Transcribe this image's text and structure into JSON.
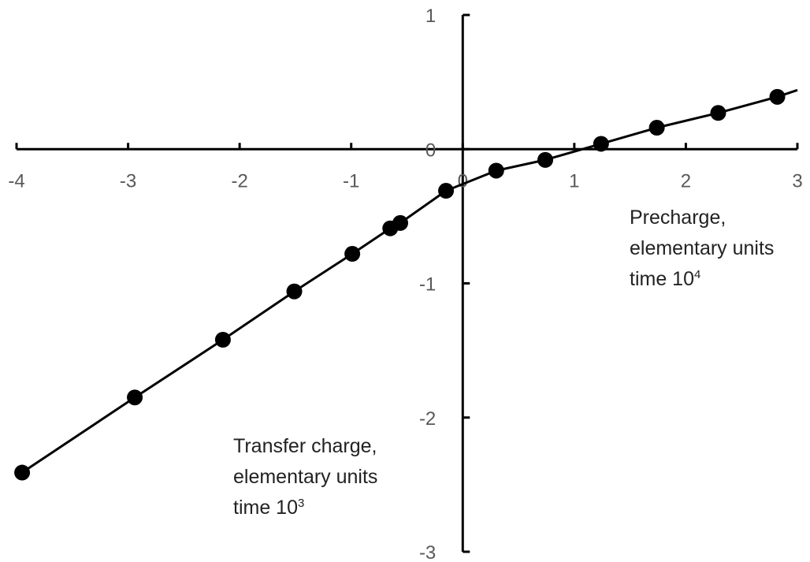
{
  "chart_data": {
    "type": "line",
    "xlim": [
      -4,
      3
    ],
    "ylim": [
      -3,
      1
    ],
    "x_ticks": [
      "-4",
      "-3",
      "-2",
      "-1",
      "0",
      "1",
      "2",
      "3"
    ],
    "y_ticks": [
      "1",
      "0",
      "-1",
      "-2",
      "-3"
    ],
    "x_tick_values": [
      -4,
      -3,
      -2,
      -1,
      0,
      1,
      2,
      3
    ],
    "y_tick_values": [
      1,
      0,
      -1,
      -2,
      -3
    ],
    "xlabel": {
      "lines": [
        "Precharge,",
        "elementary units"
      ],
      "last_line_prefix": "time 10",
      "superscript": "4"
    },
    "ylabel": {
      "lines": [
        "Transfer charge,",
        "elementary units"
      ],
      "last_line_prefix": "time 10",
      "superscript": "3"
    },
    "grid": false,
    "legend": false,
    "marker": "filled-circle",
    "series": [
      {
        "x": [
          -3.95,
          -2.94,
          -2.15,
          -1.51,
          -0.99,
          -0.65,
          -0.56,
          -0.15,
          0.3,
          0.74,
          1.24,
          1.74,
          2.29,
          2.82
        ],
        "y": [
          -2.41,
          -1.85,
          -1.42,
          -1.06,
          -0.78,
          -0.59,
          -0.55,
          -0.31,
          -0.16,
          -0.08,
          0.04,
          0.16,
          0.27,
          0.39
        ]
      }
    ],
    "line_extends_to": {
      "x": 3.0,
      "y": 0.44
    },
    "colors": {
      "series": "#000000",
      "axis": "#000000",
      "tick_label": "#595959"
    }
  }
}
